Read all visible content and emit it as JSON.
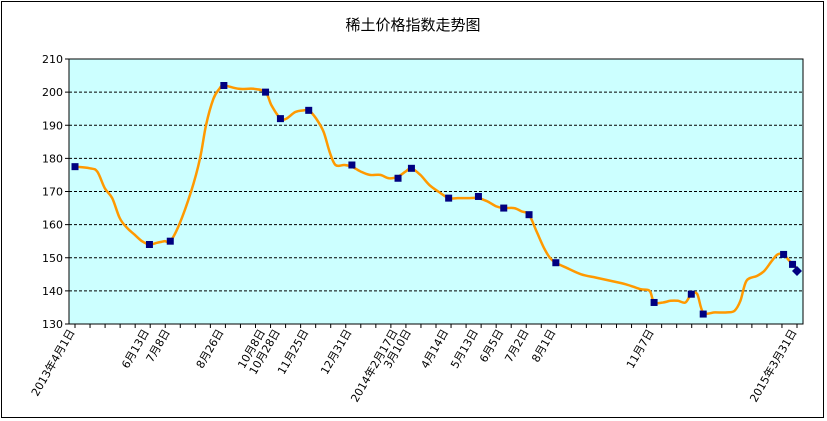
{
  "chart_data": {
    "type": "line",
    "title": "稀土价格指数走势图",
    "xlabel": "",
    "ylabel": "",
    "ylim": [
      130,
      210
    ],
    "yticks": [
      130,
      140,
      150,
      160,
      170,
      180,
      190,
      200,
      210
    ],
    "grid": true,
    "legend": "none",
    "colors": {
      "plot_bg": "#ccffff",
      "line": "#ff9900",
      "marker": "#000080",
      "grid": "#000000"
    },
    "x_tick_labels": [
      {
        "label": "2013年4月1日",
        "x": 0
      },
      {
        "label": "6月13日",
        "x": 50
      },
      {
        "label": "7月8日",
        "x": 64
      },
      {
        "label": "8月26日",
        "x": 100
      },
      {
        "label": "10月8日",
        "x": 128
      },
      {
        "label": "10月28日",
        "x": 138
      },
      {
        "label": "11月25日",
        "x": 157
      },
      {
        "label": "12月31日",
        "x": 186
      },
      {
        "label": "2014年2月17日",
        "x": 217
      },
      {
        "label": "3月10日",
        "x": 226
      },
      {
        "label": "4月14日",
        "x": 251
      },
      {
        "label": "5月13日",
        "x": 271
      },
      {
        "label": "6月5日",
        "x": 288
      },
      {
        "label": "7月2日",
        "x": 305
      },
      {
        "label": "8月1日",
        "x": 323
      },
      {
        "label": "11月7日",
        "x": 389
      },
      {
        "label": "2015年3月31日",
        "x": 485
      }
    ],
    "x_range": [
      0,
      485
    ],
    "series": [
      {
        "values": [
          {
            "x": 0,
            "y": 177.5
          },
          {
            "x": 10,
            "y": 177
          },
          {
            "x": 15,
            "y": 176
          },
          {
            "x": 20,
            "y": 171
          },
          {
            "x": 25,
            "y": 168
          },
          {
            "x": 30,
            "y": 162
          },
          {
            "x": 35,
            "y": 159
          },
          {
            "x": 40,
            "y": 157
          },
          {
            "x": 45,
            "y": 155
          },
          {
            "x": 50,
            "y": 154
          },
          {
            "x": 55,
            "y": 154.5
          },
          {
            "x": 60,
            "y": 155
          },
          {
            "x": 64,
            "y": 155
          },
          {
            "x": 70,
            "y": 160
          },
          {
            "x": 78,
            "y": 170
          },
          {
            "x": 84,
            "y": 180
          },
          {
            "x": 88,
            "y": 190
          },
          {
            "x": 93,
            "y": 198
          },
          {
            "x": 97,
            "y": 201
          },
          {
            "x": 100,
            "y": 202
          },
          {
            "x": 110,
            "y": 201
          },
          {
            "x": 120,
            "y": 201
          },
          {
            "x": 128,
            "y": 200
          },
          {
            "x": 132,
            "y": 196
          },
          {
            "x": 138,
            "y": 192
          },
          {
            "x": 142,
            "y": 192
          },
          {
            "x": 148,
            "y": 194
          },
          {
            "x": 154,
            "y": 194.5
          },
          {
            "x": 157,
            "y": 194.5
          },
          {
            "x": 162,
            "y": 192
          },
          {
            "x": 167,
            "y": 188
          },
          {
            "x": 171,
            "y": 182
          },
          {
            "x": 175,
            "y": 178
          },
          {
            "x": 181,
            "y": 178
          },
          {
            "x": 186,
            "y": 177.5
          },
          {
            "x": 192,
            "y": 176
          },
          {
            "x": 198,
            "y": 175
          },
          {
            "x": 205,
            "y": 175
          },
          {
            "x": 211,
            "y": 174
          },
          {
            "x": 217,
            "y": 174.5
          },
          {
            "x": 222,
            "y": 176
          },
          {
            "x": 226,
            "y": 177
          },
          {
            "x": 232,
            "y": 175
          },
          {
            "x": 238,
            "y": 172
          },
          {
            "x": 244,
            "y": 170
          },
          {
            "x": 251,
            "y": 168
          },
          {
            "x": 257,
            "y": 168
          },
          {
            "x": 264,
            "y": 168
          },
          {
            "x": 271,
            "y": 168
          },
          {
            "x": 277,
            "y": 167
          },
          {
            "x": 283,
            "y": 165.5
          },
          {
            "x": 288,
            "y": 165
          },
          {
            "x": 295,
            "y": 165
          },
          {
            "x": 300,
            "y": 164
          },
          {
            "x": 305,
            "y": 163
          },
          {
            "x": 310,
            "y": 158
          },
          {
            "x": 315,
            "y": 153
          },
          {
            "x": 319,
            "y": 150
          },
          {
            "x": 323,
            "y": 148.5
          },
          {
            "x": 330,
            "y": 147
          },
          {
            "x": 340,
            "y": 145
          },
          {
            "x": 350,
            "y": 144
          },
          {
            "x": 360,
            "y": 143
          },
          {
            "x": 370,
            "y": 142
          },
          {
            "x": 380,
            "y": 140.5
          },
          {
            "x": 386,
            "y": 140
          },
          {
            "x": 389,
            "y": 136.5
          },
          {
            "x": 395,
            "y": 136.5
          },
          {
            "x": 400,
            "y": 137
          },
          {
            "x": 405,
            "y": 137
          },
          {
            "x": 410,
            "y": 136.5
          },
          {
            "x": 414,
            "y": 139
          },
          {
            "x": 418,
            "y": 139
          },
          {
            "x": 422,
            "y": 133.5
          },
          {
            "x": 430,
            "y": 133.5
          },
          {
            "x": 438,
            "y": 133.5
          },
          {
            "x": 443,
            "y": 134
          },
          {
            "x": 447,
            "y": 137
          },
          {
            "x": 451,
            "y": 143
          },
          {
            "x": 458,
            "y": 144.5
          },
          {
            "x": 463,
            "y": 146
          },
          {
            "x": 468,
            "y": 149
          },
          {
            "x": 472,
            "y": 151
          },
          {
            "x": 476,
            "y": 151
          },
          {
            "x": 480,
            "y": 149
          },
          {
            "x": 483,
            "y": 148
          },
          {
            "x": 485,
            "y": 146
          }
        ]
      }
    ],
    "markers": [
      {
        "x": 0,
        "y": 177.5,
        "shape": "square"
      },
      {
        "x": 50,
        "y": 154,
        "shape": "square"
      },
      {
        "x": 64,
        "y": 155,
        "shape": "square"
      },
      {
        "x": 100,
        "y": 202,
        "shape": "square"
      },
      {
        "x": 128,
        "y": 200,
        "shape": "square"
      },
      {
        "x": 138,
        "y": 192,
        "shape": "square"
      },
      {
        "x": 157,
        "y": 194.5,
        "shape": "square"
      },
      {
        "x": 186,
        "y": 178,
        "shape": "square"
      },
      {
        "x": 217,
        "y": 174,
        "shape": "square"
      },
      {
        "x": 226,
        "y": 177,
        "shape": "square"
      },
      {
        "x": 251,
        "y": 168,
        "shape": "square"
      },
      {
        "x": 271,
        "y": 168.5,
        "shape": "square"
      },
      {
        "x": 288,
        "y": 165,
        "shape": "square"
      },
      {
        "x": 305,
        "y": 163,
        "shape": "square"
      },
      {
        "x": 323,
        "y": 148.5,
        "shape": "square"
      },
      {
        "x": 389,
        "y": 136.5,
        "shape": "square"
      },
      {
        "x": 414,
        "y": 139,
        "shape": "square"
      },
      {
        "x": 422,
        "y": 133,
        "shape": "square"
      },
      {
        "x": 476,
        "y": 151,
        "shape": "square"
      },
      {
        "x": 482,
        "y": 148,
        "shape": "square"
      },
      {
        "x": 485,
        "y": 146,
        "shape": "diamond"
      }
    ]
  }
}
